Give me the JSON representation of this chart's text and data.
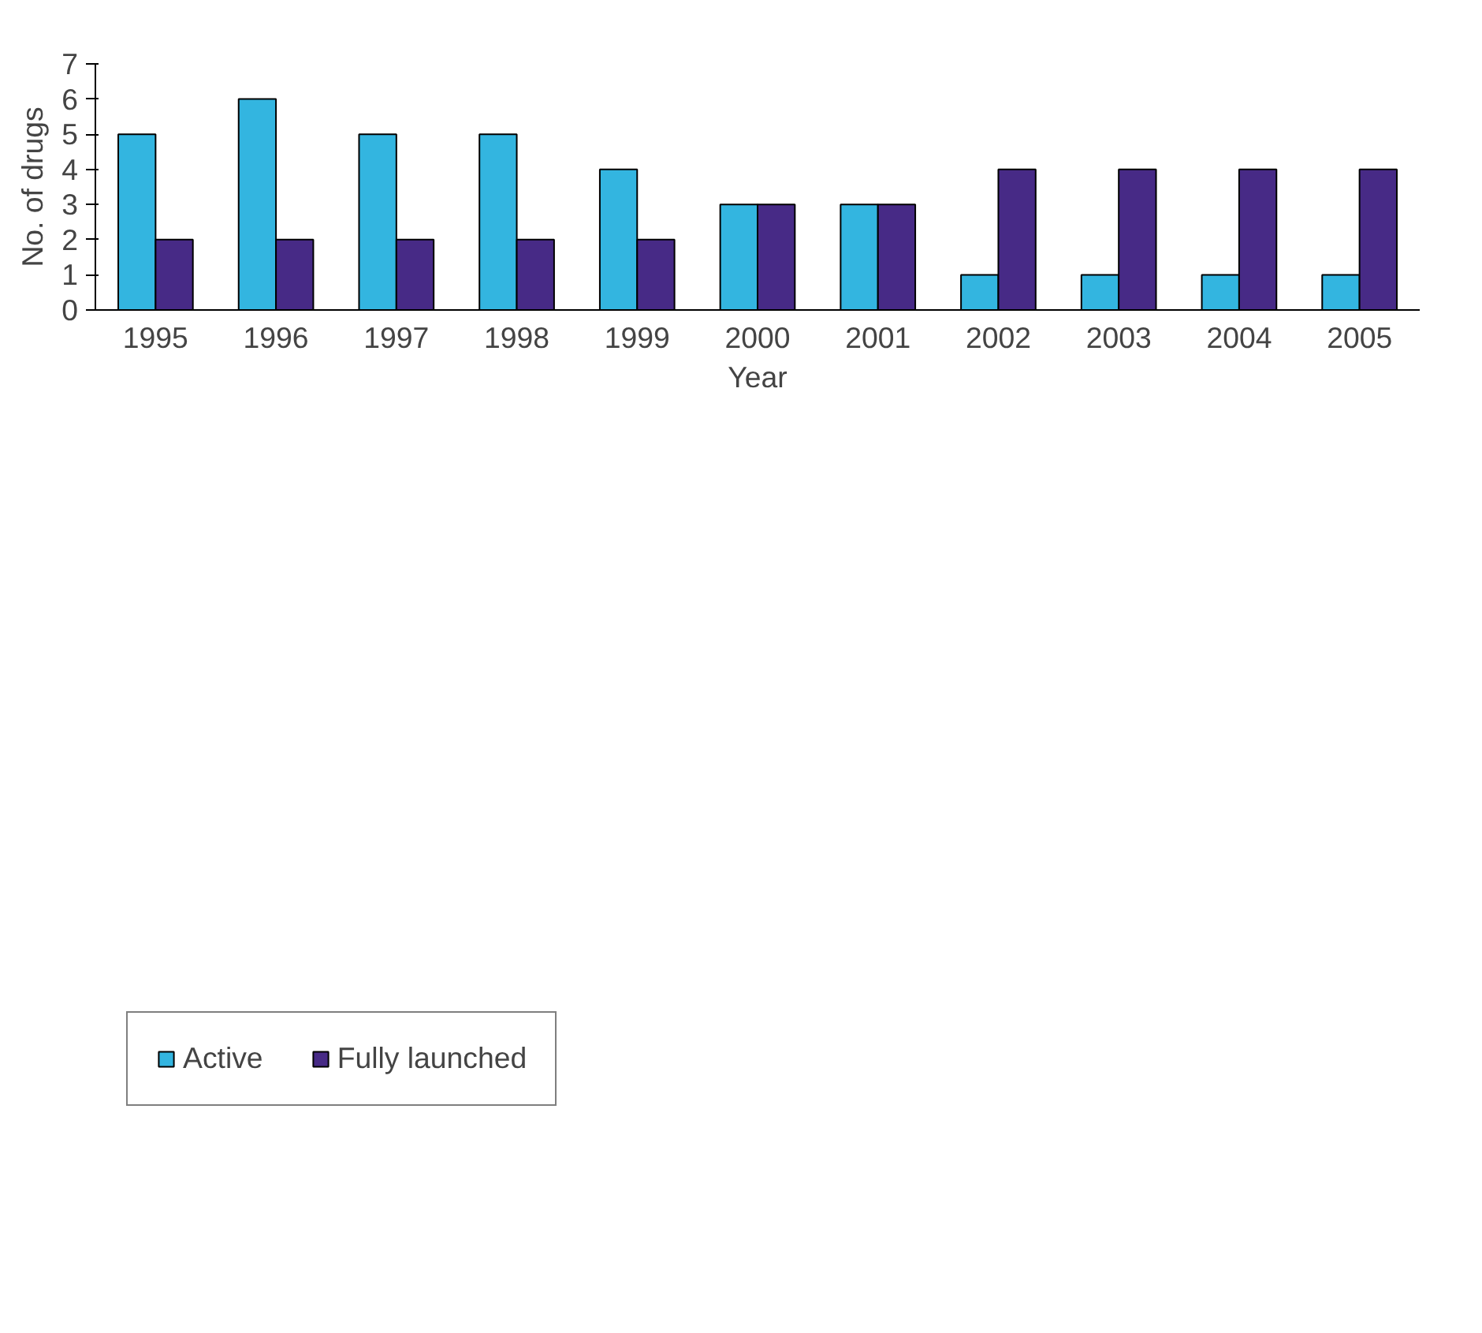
{
  "chart_data": {
    "type": "bar",
    "xlabel": "Year",
    "ylabel": "No. of drugs",
    "categories": [
      "1995",
      "1996",
      "1997",
      "1998",
      "1999",
      "2000",
      "2001",
      "2002",
      "2003",
      "2004",
      "2005"
    ],
    "series": [
      {
        "name": "Active",
        "color": "#33b5e0",
        "values": [
          5,
          6,
          5,
          5,
          4,
          3,
          3,
          1,
          1,
          1,
          1
        ]
      },
      {
        "name": "Fully launched",
        "color": "#472a86",
        "values": [
          2,
          2,
          2,
          2,
          2,
          3,
          3,
          4,
          4,
          4,
          4
        ]
      }
    ],
    "ylim": [
      0,
      7
    ],
    "yticks": [
      0,
      1,
      2,
      3,
      4,
      5,
      6,
      7
    ],
    "grid": false,
    "legend": "bottom left"
  }
}
